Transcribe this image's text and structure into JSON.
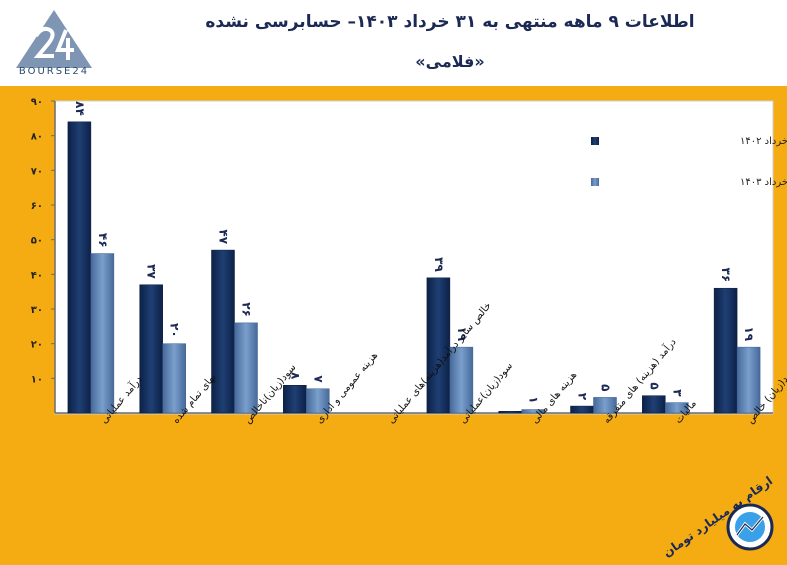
{
  "header": {
    "title": "اطلاعات ۹ ماهه منتهی به ۳۱ خرداد ۱۴۰۳– حسابرسی نشده",
    "subtitle": "«فلامی»",
    "logo_text": "BOURSE24"
  },
  "note": "ارقام به میلیارد تومان",
  "colors": {
    "background": "#f5ac12",
    "series1": "#14305e",
    "series2": "#5a82b4",
    "plot_bg": "#ffffff"
  },
  "chart_data": {
    "type": "bar",
    "title": "اطلاعات ۹ ماهه منتهی به ۳۱ خرداد ۱۴۰۳– حسابرسی نشده",
    "ylim": [
      0,
      90
    ],
    "yticks": [
      10,
      20,
      30,
      40,
      50,
      60,
      70,
      80,
      90
    ],
    "ytick_labels": [
      "۱۰",
      "۲۰",
      "۳۰",
      "۴۰",
      "۵۰",
      "۶۰",
      "۷۰",
      "۸۰",
      "۹۰"
    ],
    "grid": false,
    "legend_position": "top-right",
    "categories": [
      "درآمد عملیاتی",
      "بهای تمام شده",
      "سود(زیان)ناخالص",
      "هزینه عمومی و اداری",
      "خالص سایر درآمد(هزینه)های عملیاتی",
      "سود(زیان)عملیاتی",
      "هزینه های مالی",
      "درآمد (هزینه) های متفرقه",
      "مالیات",
      "سود(زیان) خالص"
    ],
    "series": [
      {
        "name": "عملکرد منتهی به خرداد ۱۴۰۲",
        "values": [
          84,
          37,
          47,
          8,
          0,
          39,
          0.5,
          2,
          5,
          36
        ],
        "labels": [
          "۸۴",
          "۳۷",
          "۴۷",
          "۸",
          "",
          "۳۹",
          "",
          "۲",
          "۵",
          "۳۶"
        ]
      },
      {
        "name": "عملکرد منتهی به خرداد ۱۴۰۳",
        "values": [
          46,
          20,
          26,
          7,
          0,
          19,
          1,
          4.5,
          3,
          19
        ],
        "labels": [
          "۴۶",
          "۲۰",
          "۲۶",
          "۷",
          "",
          "۱۹",
          "۱",
          "۵",
          "۳",
          "۱۹"
        ]
      }
    ]
  }
}
